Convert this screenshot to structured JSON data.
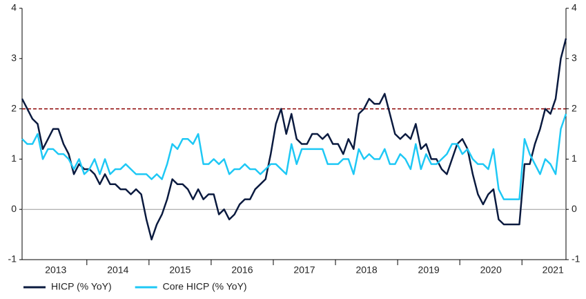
{
  "chart_data": {
    "type": "line",
    "categories": [
      null,
      null,
      null,
      null,
      null,
      null,
      null,
      "2013",
      null,
      null,
      null,
      null,
      null,
      null,
      null,
      null,
      null,
      null,
      null,
      "2014",
      null,
      null,
      null,
      null,
      null,
      null,
      null,
      null,
      null,
      null,
      null,
      "2015",
      null,
      null,
      null,
      null,
      null,
      null,
      null,
      null,
      null,
      null,
      null,
      "2016",
      null,
      null,
      null,
      null,
      null,
      null,
      null,
      null,
      null,
      null,
      null,
      "2017",
      null,
      null,
      null,
      null,
      null,
      null,
      null,
      null,
      null,
      null,
      null,
      "2018",
      null,
      null,
      null,
      null,
      null,
      null,
      null,
      null,
      null,
      null,
      null,
      "2019",
      null,
      null,
      null,
      null,
      null,
      null,
      null,
      null,
      null,
      null,
      null,
      "2020",
      null,
      null,
      null,
      null,
      null,
      null,
      null,
      null,
      null,
      null,
      null,
      "2021",
      null,
      null
    ],
    "series": [
      {
        "name": "HICP (% YoY)",
        "color": "#0a1a3f",
        "values": [
          2.2,
          2.0,
          1.8,
          1.7,
          1.2,
          1.4,
          1.6,
          1.6,
          1.3,
          1.1,
          0.7,
          0.9,
          0.8,
          0.8,
          0.7,
          0.5,
          0.7,
          0.5,
          0.5,
          0.4,
          0.4,
          0.3,
          0.4,
          0.3,
          -0.2,
          -0.6,
          -0.3,
          -0.1,
          0.2,
          0.6,
          0.5,
          0.5,
          0.4,
          0.2,
          0.4,
          0.2,
          0.3,
          0.3,
          -0.1,
          0.0,
          -0.2,
          -0.1,
          0.1,
          0.2,
          0.2,
          0.4,
          0.5,
          0.6,
          1.1,
          1.7,
          2.0,
          1.5,
          1.9,
          1.4,
          1.3,
          1.3,
          1.5,
          1.5,
          1.4,
          1.5,
          1.3,
          1.3,
          1.1,
          1.4,
          1.2,
          1.9,
          2.0,
          2.2,
          2.1,
          2.1,
          2.3,
          1.9,
          1.5,
          1.4,
          1.5,
          1.4,
          1.7,
          1.2,
          1.3,
          1.0,
          1.0,
          0.8,
          0.7,
          1.0,
          1.3,
          1.4,
          1.2,
          0.7,
          0.3,
          0.1,
          0.3,
          0.4,
          -0.2,
          -0.3,
          -0.3,
          -0.3,
          -0.3,
          0.9,
          0.9,
          1.3,
          1.6,
          2.0,
          1.9,
          2.2,
          3.0,
          3.4
        ]
      },
      {
        "name": "Core HICP (% YoY)",
        "color": "#1ec8f5",
        "values": [
          1.4,
          1.3,
          1.3,
          1.5,
          1.0,
          1.2,
          1.2,
          1.1,
          1.1,
          1.0,
          0.8,
          1.0,
          0.7,
          0.8,
          1.0,
          0.7,
          1.0,
          0.7,
          0.8,
          0.8,
          0.9,
          0.8,
          0.7,
          0.7,
          0.7,
          0.6,
          0.7,
          0.6,
          0.9,
          1.3,
          1.2,
          1.4,
          1.4,
          1.3,
          1.5,
          0.9,
          0.9,
          1.0,
          0.9,
          1.0,
          0.7,
          0.8,
          0.8,
          0.9,
          0.8,
          0.8,
          0.7,
          0.8,
          0.9,
          0.9,
          0.8,
          0.7,
          1.3,
          0.9,
          1.2,
          1.2,
          1.2,
          1.2,
          1.2,
          0.9,
          0.9,
          0.9,
          1.0,
          1.0,
          0.7,
          1.2,
          1.0,
          1.1,
          1.0,
          1.0,
          1.2,
          0.9,
          0.9,
          1.1,
          1.0,
          0.8,
          1.3,
          0.8,
          1.1,
          0.9,
          0.9,
          1.0,
          1.1,
          1.3,
          1.3,
          1.1,
          1.2,
          1.0,
          0.9,
          0.9,
          0.8,
          1.2,
          0.4,
          0.2,
          0.2,
          0.2,
          0.2,
          1.4,
          1.1,
          0.9,
          0.7,
          1.0,
          0.9,
          0.7,
          1.6,
          1.9
        ]
      }
    ],
    "ylim": [
      -1,
      4
    ],
    "yticks": [
      -1,
      0,
      1,
      2,
      3,
      4
    ],
    "reference_line": {
      "value": 2,
      "color": "#8b0000"
    },
    "legend": "bottom-left"
  }
}
